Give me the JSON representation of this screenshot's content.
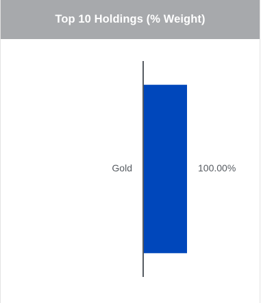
{
  "widget": {
    "title": "Top 10 Holdings (% Weight)"
  },
  "colors": {
    "header_bg": "#a7a9ac",
    "bar": "#0047bb",
    "axis": "#555a60",
    "text": "#555a60"
  },
  "chart_data": {
    "type": "bar",
    "orientation": "horizontal",
    "title": "Top 10 Holdings (% Weight)",
    "categories": [
      "Gold"
    ],
    "values": [
      100.0
    ],
    "value_labels": [
      "100.00%"
    ],
    "xlim": [
      0,
      100
    ],
    "grid": false,
    "legend": "none"
  }
}
